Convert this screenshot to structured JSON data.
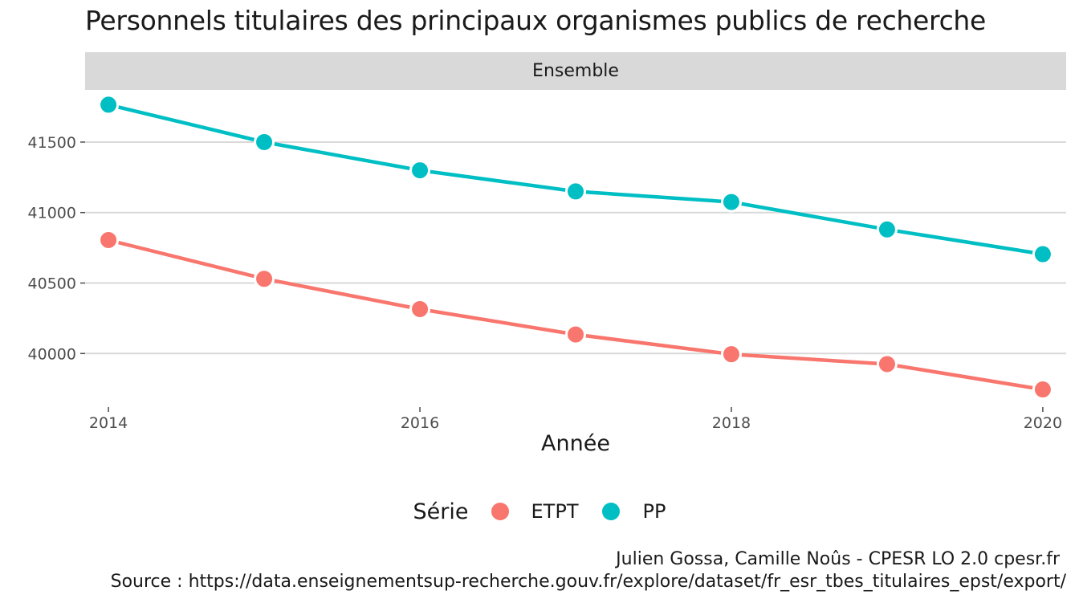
{
  "chart_data": {
    "type": "line",
    "title": "Personnels titulaires des principaux organismes publics de recherche",
    "facet": "Ensemble",
    "xlabel": "Année",
    "ylabel": "",
    "x": [
      2014,
      2015,
      2016,
      2017,
      2018,
      2019,
      2020
    ],
    "x_ticks": [
      "2014",
      "2016",
      "2018",
      "2020"
    ],
    "y_ticks": [
      "40000",
      "40500",
      "41000",
      "41500"
    ],
    "xlim": [
      2013.85,
      2020.15
    ],
    "ylim": [
      39620,
      41870
    ],
    "grid": true,
    "legend": {
      "title": "Série",
      "placement": "bottom"
    },
    "series": [
      {
        "name": "ETPT",
        "color": "#F8766D",
        "values": [
          40805,
          40530,
          40315,
          40135,
          39995,
          39925,
          39745
        ]
      },
      {
        "name": "PP",
        "color": "#00BFC4",
        "values": [
          41765,
          41500,
          41300,
          41150,
          41075,
          40880,
          40705
        ]
      }
    ]
  },
  "caption": {
    "line1": "Julien Gossa, Camille Noûs - CPESR LO 2.0 cpesr.fr",
    "line2": "Source : https://data.enseignementsup-recherche.gouv.fr/explore/dataset/fr_esr_tbes_titulaires_epst/export/"
  }
}
